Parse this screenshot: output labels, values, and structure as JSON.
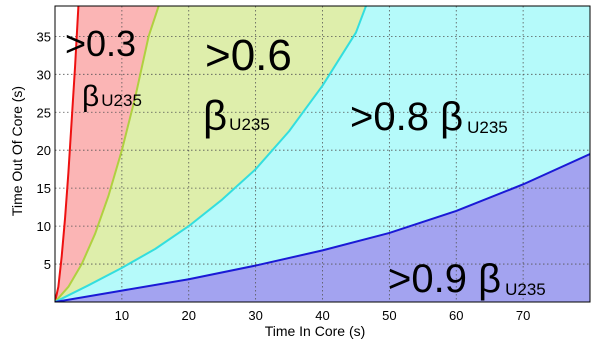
{
  "chart_data": {
    "type": "area",
    "xlabel": "Time In Core (s)",
    "ylabel": "Time Out Of Core (s)",
    "xlim": [
      0,
      80
    ],
    "ylim": [
      0,
      39
    ],
    "xticks": [
      "10",
      "20",
      "30",
      "40",
      "50",
      "60",
      "70"
    ],
    "xtick_values": [
      10,
      20,
      30,
      40,
      50,
      60,
      70
    ],
    "yticks": [
      "5",
      "10",
      "15",
      "20",
      "25",
      "30",
      "35"
    ],
    "ytick_values": [
      5,
      10,
      15,
      20,
      25,
      30,
      35
    ],
    "grid": true,
    "series": [
      {
        "name": ">0.3 βU235",
        "color": "#ee1111",
        "fill": "#fbb5b5",
        "x": [
          0,
          0.5,
          1,
          1.5,
          2,
          2.5,
          3,
          3.5
        ],
        "y": [
          0,
          2,
          6,
          11,
          17,
          24,
          31,
          39
        ]
      },
      {
        "name": ">0.6 βU235",
        "color": "#b0d040",
        "fill": "#deeeab",
        "x": [
          0,
          2,
          4,
          6,
          8,
          10,
          12,
          14,
          15.5
        ],
        "y": [
          0,
          2,
          5,
          9,
          14,
          20,
          27,
          35,
          39
        ]
      },
      {
        "name": ">0.8 βU235",
        "color": "#33dede",
        "fill": "#b5fafa",
        "x": [
          0,
          5,
          10,
          15,
          20,
          25,
          30,
          35,
          40,
          45,
          46.5
        ],
        "y": [
          0,
          2.2,
          4.5,
          7,
          10,
          13.5,
          17.5,
          22.5,
          28.5,
          35.5,
          39
        ]
      },
      {
        "name": ">0.9 βU235",
        "color": "#1a1ad6",
        "fill": "#a3a3f0",
        "x": [
          0,
          10,
          20,
          30,
          40,
          50,
          60,
          70,
          80
        ],
        "y": [
          0,
          1.5,
          3,
          4.8,
          6.8,
          9.1,
          12,
          15.5,
          19.5
        ]
      }
    ],
    "region_labels": [
      {
        "series": 0,
        "main": ">0.3",
        "beta": "β",
        "sub": "U235"
      },
      {
        "series": 1,
        "main": ">0.6",
        "beta": "β",
        "sub": "U235"
      },
      {
        "series": 2,
        "main": ">0.8 β",
        "beta": "",
        "sub": "U235"
      },
      {
        "series": 3,
        "main": ">0.9 β",
        "beta": "",
        "sub": "U235"
      }
    ]
  }
}
